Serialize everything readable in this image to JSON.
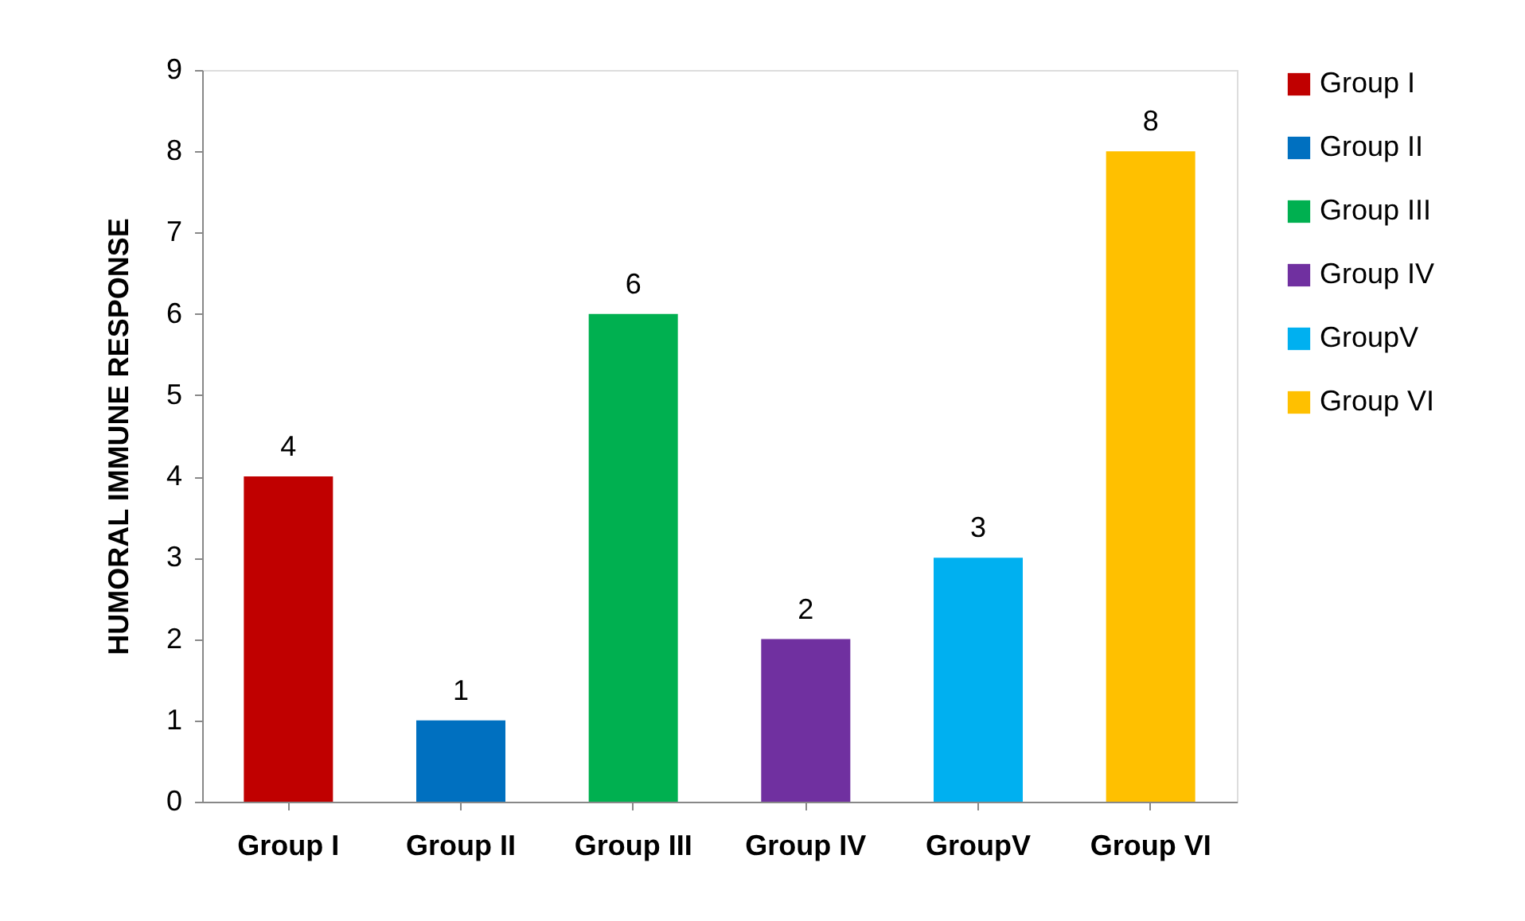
{
  "chart_data": {
    "type": "bar",
    "ylabel": "HUMORAL IMMUNE RESPONSE",
    "categories": [
      "Group I",
      "Group II",
      "Group III",
      "Group IV",
      "GroupV",
      "Group VI"
    ],
    "series": [
      {
        "name": "Group I",
        "color": "#c00000",
        "values": [
          4,
          null,
          null,
          null,
          null,
          null
        ]
      },
      {
        "name": "Group II",
        "color": "#0070c0",
        "values": [
          null,
          1,
          null,
          null,
          null,
          null
        ]
      },
      {
        "name": "Group III",
        "color": "#00b050",
        "values": [
          null,
          null,
          6,
          null,
          null,
          null
        ]
      },
      {
        "name": "Group IV",
        "color": "#7030a0",
        "values": [
          null,
          null,
          null,
          2,
          null,
          null
        ]
      },
      {
        "name": "GroupV",
        "color": "#00b0f0",
        "values": [
          null,
          null,
          null,
          null,
          3,
          null
        ]
      },
      {
        "name": "Group VI",
        "color": "#ffc000",
        "values": [
          null,
          null,
          null,
          null,
          null,
          8
        ]
      }
    ],
    "ylim": [
      0,
      9
    ],
    "yticks": [
      0,
      1,
      2,
      3,
      4,
      5,
      6,
      7,
      8,
      9
    ],
    "grid": false,
    "legend": "right",
    "data_labels": true
  }
}
